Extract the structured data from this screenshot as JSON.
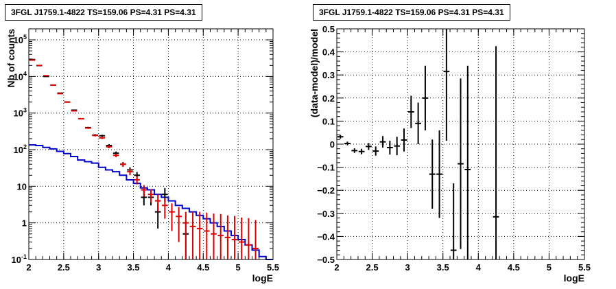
{
  "chart_data": [
    {
      "type": "line",
      "title": "3FGL J1759.1-4822 TS=159.06 PS=4.31 PS=4.31",
      "xlabel": "logE",
      "ylabel": "Nb of counts",
      "xlim": [
        2,
        5.5
      ],
      "ylim": [
        0.1,
        200000
      ],
      "yscale": "log",
      "grid": true,
      "x_ticks": [
        "2",
        "2.5",
        "3",
        "3.5",
        "4",
        "4.5",
        "5",
        "5.5"
      ],
      "y_ticks": [
        {
          "value": 0.1,
          "base": "10",
          "exp": "-1"
        },
        {
          "value": 1,
          "base": "1",
          "exp": ""
        },
        {
          "value": 10,
          "base": "10",
          "exp": ""
        },
        {
          "value": 100,
          "base": "10",
          "exp": "2"
        },
        {
          "value": 1000,
          "base": "10",
          "exp": "3"
        },
        {
          "value": 10000,
          "base": "10",
          "exp": "4"
        },
        {
          "value": 100000,
          "base": "10",
          "exp": "5"
        }
      ],
      "bin_width": 0.1,
      "series": [
        {
          "color": "#0000cc",
          "style": "histogram",
          "x": [
            2.05,
            2.15,
            2.25,
            2.35,
            2.45,
            2.55,
            2.65,
            2.75,
            2.85,
            2.95,
            3.05,
            3.15,
            3.25,
            3.35,
            3.45,
            3.55,
            3.65,
            3.75,
            3.85,
            3.95,
            4.05,
            4.15,
            4.25,
            4.35,
            4.45,
            4.55,
            4.65,
            4.75,
            4.85,
            4.95,
            5.05,
            5.15,
            5.25,
            5.35,
            5.45
          ],
          "y": [
            135,
            130,
            115,
            105,
            90,
            78,
            65,
            52,
            47,
            43,
            33,
            28,
            25,
            20,
            15,
            12,
            9,
            8,
            6,
            5,
            4,
            3,
            2.5,
            2,
            1.6,
            1.3,
            1,
            0.8,
            0.6,
            0.45,
            0.35,
            0.25,
            0.18,
            0.12,
            0.1
          ]
        },
        {
          "color": "#000000",
          "style": "points",
          "x": [
            2.05,
            2.15,
            2.25,
            2.35,
            2.45,
            2.55,
            2.65,
            2.75,
            2.85,
            2.95,
            3.05,
            3.15,
            3.25,
            3.35,
            3.45,
            3.55,
            3.65,
            3.75,
            3.85,
            3.95,
            4.25
          ],
          "y": [
            29000,
            19800,
            10000,
            5800,
            3500,
            2000,
            1200,
            700,
            400,
            250,
            240,
            130,
            80,
            40,
            28,
            20,
            5,
            5,
            2,
            6,
            0.5
          ],
          "err_low": [
            170,
            140,
            100,
            76,
            59,
            45,
            35,
            26,
            20,
            16,
            15,
            11,
            9,
            6,
            5,
            4.5,
            2,
            2,
            1.3,
            2.3,
            0.4
          ],
          "err_high": [
            170,
            140,
            100,
            76,
            59,
            45,
            35,
            26,
            20,
            16,
            15,
            11,
            9,
            6,
            5,
            4.5,
            2.5,
            2.5,
            1.5,
            3,
            0.6
          ]
        },
        {
          "color": "#dd0000",
          "style": "points",
          "x": [
            2.05,
            2.15,
            2.25,
            2.35,
            2.45,
            2.55,
            2.65,
            2.75,
            2.85,
            2.95,
            3.05,
            3.15,
            3.25,
            3.35,
            3.45,
            3.55,
            3.65,
            3.75,
            3.85,
            3.95,
            4.05,
            4.15,
            4.25,
            4.35,
            4.45,
            4.55,
            4.65,
            4.75,
            4.85,
            4.95,
            5.05,
            5.15,
            5.25
          ],
          "y": [
            28000,
            20000,
            10500,
            5800,
            3400,
            2000,
            1150,
            700,
            390,
            245,
            210,
            120,
            70,
            40,
            25,
            15,
            8,
            6,
            4,
            3,
            2,
            1.5,
            1,
            0.8,
            0.7,
            0.6,
            0.5,
            0.45,
            0.4,
            0.35,
            0.3,
            0.25,
            0.2
          ],
          "err_low": [
            165,
            140,
            100,
            76,
            58,
            45,
            34,
            26,
            20,
            16,
            14,
            11,
            8,
            6,
            5,
            3.8,
            2.8,
            2.4,
            2,
            1.7,
            1.4,
            1.2,
            1,
            0.8,
            0.7,
            0.6,
            0.5,
            0.45,
            0.4,
            0.35,
            0.3,
            0.25,
            0.2
          ],
          "err_high": [
            165,
            140,
            100,
            76,
            58,
            45,
            34,
            26,
            20,
            16,
            14,
            11,
            8,
            6,
            5,
            3.8,
            2.8,
            2.4,
            2,
            1.7,
            1.4,
            1.2,
            1,
            1.2,
            1.3,
            1.3,
            1.3,
            1.3,
            1.2,
            1.2,
            1.1,
            1.1,
            1
          ]
        }
      ]
    },
    {
      "type": "scatter",
      "title": "3FGL J1759.1-4822 TS=159.06 PS=4.31 PS=4.31",
      "xlabel": "logE",
      "ylabel": "(data-model)/model",
      "xlim": [
        2,
        5.5
      ],
      "ylim": [
        -0.5,
        0.5
      ],
      "grid": true,
      "x_ticks": [
        "2",
        "2.5",
        "3",
        "3.5",
        "4",
        "4.5",
        "5",
        "5.5"
      ],
      "y_ticks": [
        "-0.5",
        "-0.4",
        "-0.3",
        "-0.2",
        "-0.1",
        "0",
        "0.1",
        "0.2",
        "0.3",
        "0.4",
        "0.5"
      ],
      "bin_width": 0.1,
      "series": [
        {
          "color": "#000000",
          "x": [
            2.05,
            2.15,
            2.25,
            2.35,
            2.45,
            2.55,
            2.65,
            2.75,
            2.85,
            2.95,
            3.05,
            3.15,
            3.25,
            3.35,
            3.45,
            3.55,
            3.65,
            3.75,
            3.85,
            4.25
          ],
          "y": [
            0.032,
            0.003,
            -0.028,
            -0.032,
            -0.01,
            -0.03,
            0.01,
            -0.015,
            -0.008,
            0.018,
            0.14,
            0.09,
            0.2,
            -0.13,
            -0.13,
            0.315,
            -0.46,
            -0.085,
            -0.11,
            -0.315
          ],
          "err": [
            0.008,
            0.008,
            0.01,
            0.012,
            0.015,
            0.02,
            0.025,
            0.03,
            0.04,
            0.05,
            0.07,
            0.09,
            0.14,
            0.15,
            0.19,
            0.3,
            0.29,
            0.37,
            0.45,
            0.74
          ]
        }
      ]
    }
  ]
}
